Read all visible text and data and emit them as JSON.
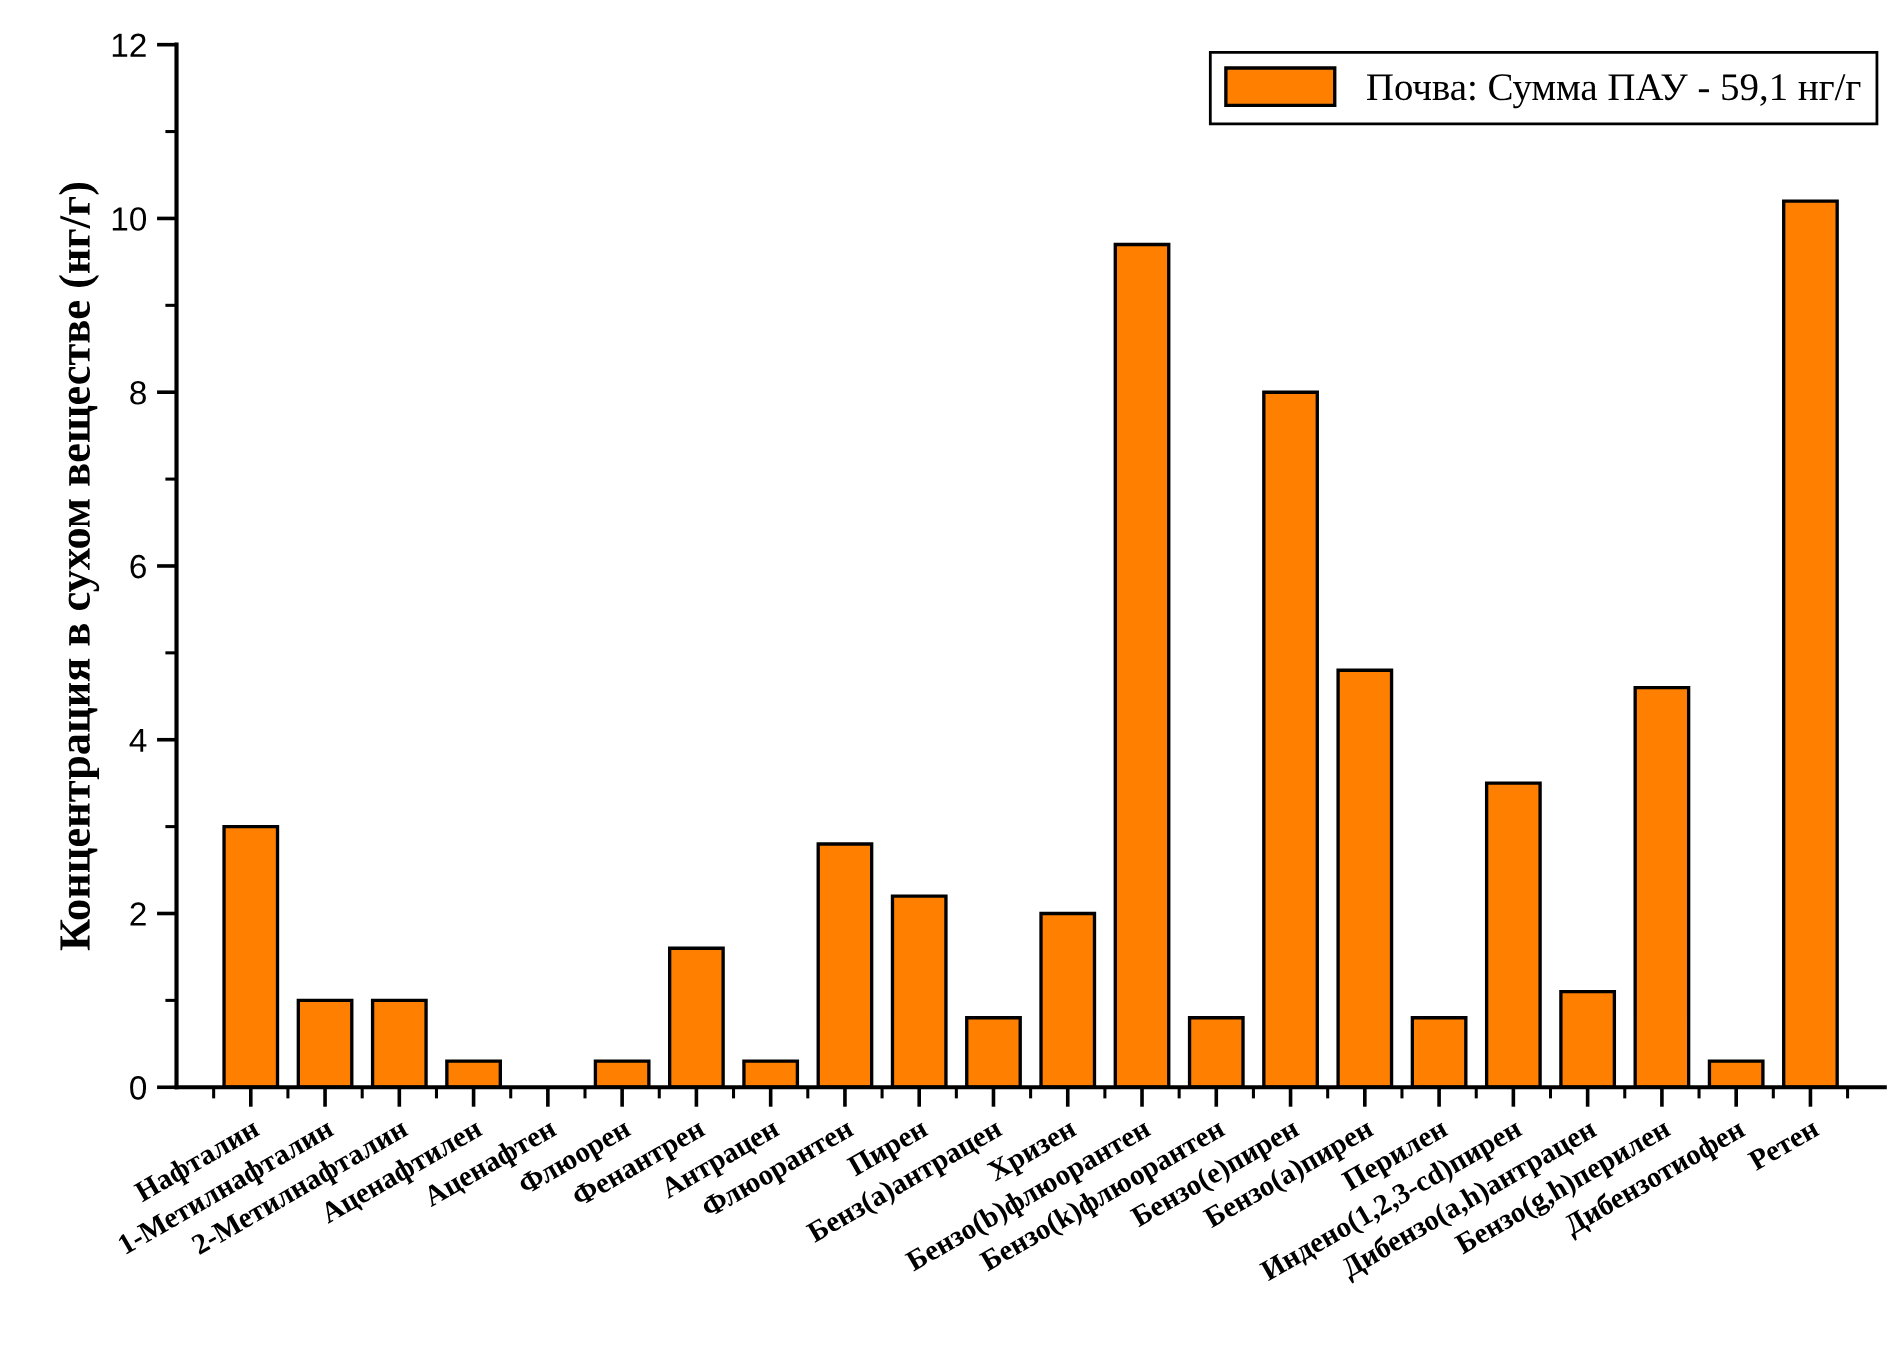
{
  "chart_data": {
    "type": "bar",
    "ylabel": "Концентрация в сухом веществе (нг/г)",
    "categories": [
      "Нафталин",
      "1-Метилнафталин",
      "2-Метилнафталин",
      "Аценафтилен",
      "Аценафтен",
      "Флюорен",
      "Фенантрен",
      "Антрацен",
      "Флюорантен",
      "Пирен",
      "Бенз(a)антрацен",
      "Хризен",
      "Бензо(b)флюорантен",
      "Бензо(k)флюорантен",
      "Бензо(e)пирен",
      "Бензо(a)пирен",
      "Перилен",
      "Индено(1,2,3-cd)пирен",
      "Дибензо(a,h)антрацен",
      "Бензо(g,h)перилен",
      "Дибензотиофен",
      "Ретен"
    ],
    "series": [
      {
        "name": "Почва: Сумма ПАУ - 59,1 нг/г",
        "color": "#ff8000",
        "values": [
          3.0,
          1.0,
          1.0,
          0.3,
          null,
          0.3,
          1.6,
          0.3,
          2.8,
          2.2,
          0.8,
          2.0,
          9.7,
          0.8,
          8.0,
          4.8,
          0.8,
          3.5,
          1.1,
          4.6,
          0.3,
          10.2
        ]
      }
    ],
    "ylim": [
      0,
      12
    ],
    "yticks": [
      0,
      2,
      4,
      6,
      8,
      10,
      12
    ],
    "grid": false,
    "legend": "top right"
  }
}
